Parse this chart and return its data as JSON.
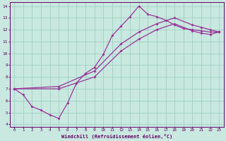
{
  "bg_color": "#c8e8e0",
  "line_color": "#993399",
  "grid_color": "#99ccbb",
  "text_color": "#660066",
  "xlabel": "Windchill (Refroidissement éolien,°C)",
  "xlim": [
    -0.5,
    23.5
  ],
  "ylim": [
    3.8,
    14.3
  ],
  "xticks": [
    0,
    1,
    2,
    3,
    4,
    5,
    6,
    7,
    8,
    9,
    10,
    11,
    12,
    13,
    14,
    15,
    16,
    17,
    18,
    19,
    20,
    21,
    22,
    23
  ],
  "yticks": [
    4,
    5,
    6,
    7,
    8,
    9,
    10,
    11,
    12,
    13,
    14
  ],
  "s1_x": [
    0,
    1,
    2,
    3,
    4,
    5,
    6,
    7,
    8,
    9,
    10,
    11,
    12,
    13,
    14,
    15,
    16,
    17,
    18,
    19,
    20,
    21,
    22,
    23
  ],
  "s1_y": [
    7.0,
    6.5,
    5.5,
    5.2,
    4.8,
    4.5,
    5.8,
    7.5,
    8.3,
    8.8,
    9.9,
    11.5,
    12.3,
    13.1,
    14.0,
    13.3,
    13.1,
    12.8,
    12.4,
    12.1,
    12.0,
    11.9,
    11.8,
    11.8
  ],
  "s2_x": [
    0,
    5,
    9,
    12,
    14,
    16,
    18,
    20,
    21,
    22,
    23
  ],
  "s2_y": [
    7.0,
    7.2,
    8.5,
    10.8,
    11.8,
    12.5,
    13.0,
    12.4,
    12.2,
    12.0,
    11.8
  ],
  "s3_x": [
    0,
    5,
    9,
    12,
    14,
    16,
    18,
    20,
    21,
    22,
    23
  ],
  "s3_y": [
    7.0,
    7.0,
    8.0,
    10.2,
    11.2,
    12.0,
    12.5,
    11.9,
    11.7,
    11.6,
    11.8
  ]
}
